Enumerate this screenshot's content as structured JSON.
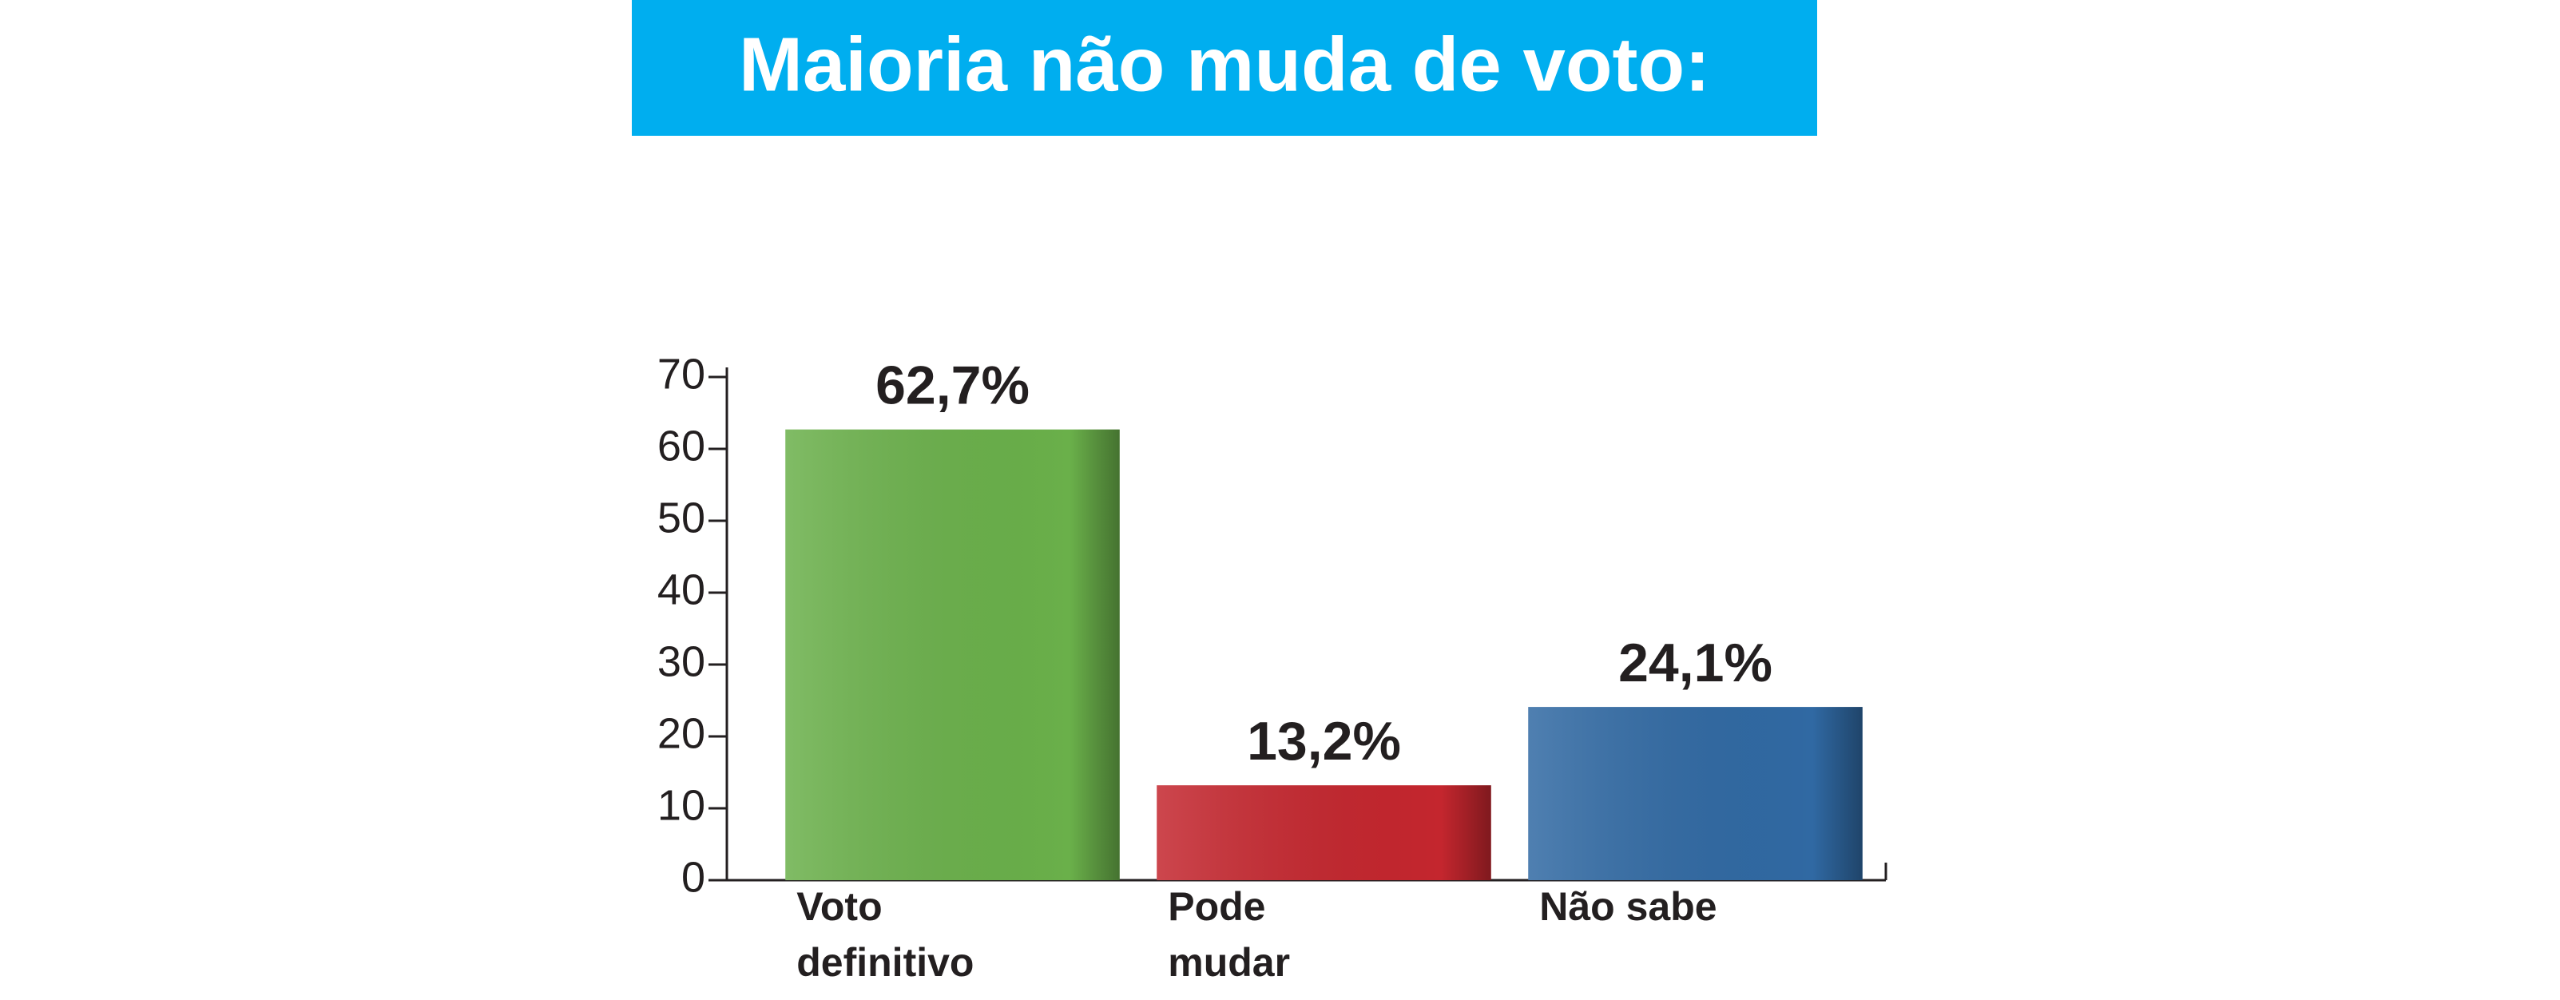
{
  "chart_data": {
    "type": "bar",
    "title": "Maioria não muda de voto:",
    "categories": [
      "Voto\ndefinitivo",
      "Pode\nmudar",
      "Não sabe"
    ],
    "values": [
      62.7,
      13.2,
      24.1
    ],
    "value_labels": [
      "62,7%",
      "13,2%",
      "24,1%"
    ],
    "colors": [
      "#6ab04a",
      "#c4262e",
      "#3069a3"
    ],
    "ylim": [
      0,
      70
    ],
    "yticks": [
      0,
      10,
      20,
      30,
      40,
      50,
      60,
      70
    ]
  }
}
